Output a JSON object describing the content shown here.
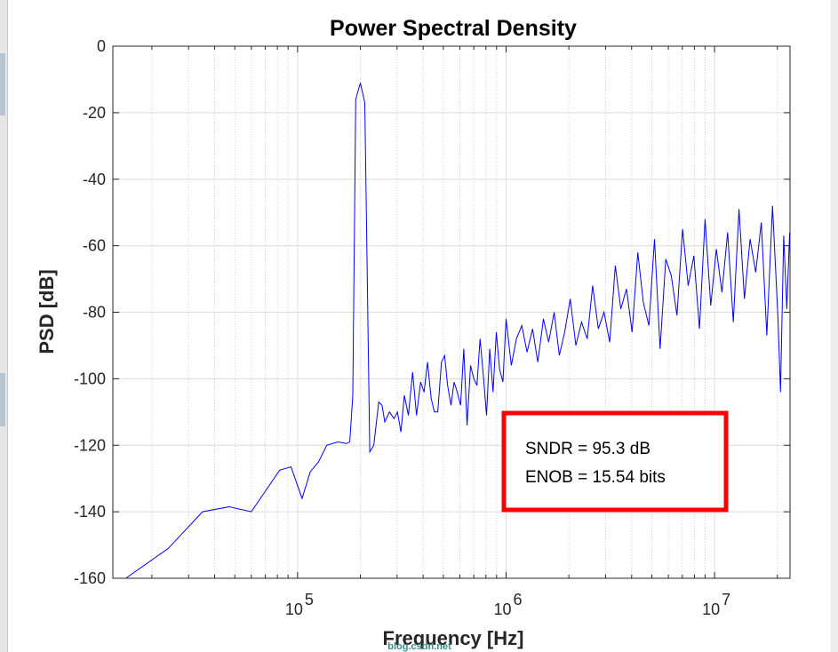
{
  "chart_data": {
    "type": "line",
    "title": "Power Spectral Density",
    "xlabel": "Frequency [Hz]",
    "ylabel": "PSD [dB]",
    "xscale": "log",
    "xlim": [
      13000,
      23000000
    ],
    "ylim": [
      -160,
      0
    ],
    "yticks": [
      0,
      -20,
      -40,
      -60,
      -80,
      -100,
      -120,
      -140,
      -160
    ],
    "ytick_labels": [
      "0",
      "-20",
      "-40",
      "-60",
      "-80",
      "-100",
      "-120",
      "-140",
      "-160"
    ],
    "xticks": [
      {
        "value": 100000,
        "base": "10",
        "exp": "5"
      },
      {
        "value": 1000000,
        "base": "10",
        "exp": "6"
      },
      {
        "value": 10000000,
        "base": "10",
        "exp": "7"
      }
    ],
    "grid": true,
    "series_color": "#0000ff",
    "series": [
      {
        "x": [
          15000,
          24000,
          35000,
          47000,
          60000,
          82000,
          93000,
          105000,
          115000,
          126000,
          138000,
          156000,
          172000,
          178000,
          184000,
          190000,
          200000,
          210000,
          222000,
          232000,
          245000,
          254000,
          262000,
          276000,
          290000,
          301000,
          313000,
          325000,
          340000,
          356000,
          372000,
          389000,
          404000,
          420000,
          437000,
          453000,
          470000,
          490000,
          507000,
          524000,
          544000,
          563000,
          583000,
          605000,
          627000,
          650000,
          675000,
          700000,
          725000,
          750000,
          778000,
          806000,
          835000,
          866000,
          898000,
          930000,
          965000,
          1000000,
          1060000,
          1120000,
          1190000,
          1260000,
          1340000,
          1420000,
          1510000,
          1600000,
          1700000,
          1800000,
          1910000,
          2030000,
          2160000,
          2300000,
          2450000,
          2600000,
          2770000,
          2950000,
          3140000,
          3340000,
          3550000,
          3780000,
          4020000,
          4280000,
          4550000,
          4840000,
          5150000,
          5480000,
          5830000,
          6200000,
          6600000,
          7020000,
          7470000,
          7950000,
          8460000,
          9000000,
          9580000,
          10200000,
          10850000,
          11550000,
          12300000,
          13100000,
          13900000,
          14800000,
          15750000,
          16750000,
          17800000,
          18950000,
          20150000,
          20700000,
          21450000,
          22200000,
          22900000
        ],
        "values": [
          -160,
          -151,
          -140,
          -138.5,
          -140,
          -127.5,
          -126.5,
          -136,
          -128,
          -125,
          -120,
          -119,
          -119.5,
          -119,
          -105,
          -16,
          -11,
          -17,
          -122,
          -120,
          -107,
          -108,
          -113,
          -110,
          -112,
          -110,
          -116,
          -105,
          -111,
          -98,
          -111,
          -101,
          -104,
          -95,
          -106,
          -110,
          -110,
          -95,
          -93,
          -102,
          -108,
          -101,
          -104,
          -108,
          -91,
          -114,
          -96,
          -100,
          -102,
          -88,
          -99,
          -111,
          -91,
          -104,
          -86,
          -97,
          -101,
          -82,
          -96,
          -88,
          -84,
          -92,
          -85,
          -95,
          -82,
          -89,
          -80,
          -93,
          -86,
          -76,
          -90,
          -83,
          -88,
          -72,
          -85,
          -80,
          -89,
          -66,
          -79,
          -73,
          -86,
          -62,
          -77,
          -84,
          -58,
          -91,
          -64,
          -69,
          -81,
          -55,
          -72,
          -63,
          -85,
          -52,
          -78,
          -61,
          -74,
          -56,
          -83,
          -49,
          -76,
          -58,
          -68,
          -53,
          -87,
          -48,
          -82,
          -104,
          -57,
          -79,
          -56
        ]
      }
    ],
    "annotations": [
      {
        "text": "SNDR = 95.3 dB"
      },
      {
        "text": "ENOB = 15.54 bits"
      }
    ],
    "annotation_border_color": "#ff0000"
  },
  "watermark": "blog.csdn.net"
}
